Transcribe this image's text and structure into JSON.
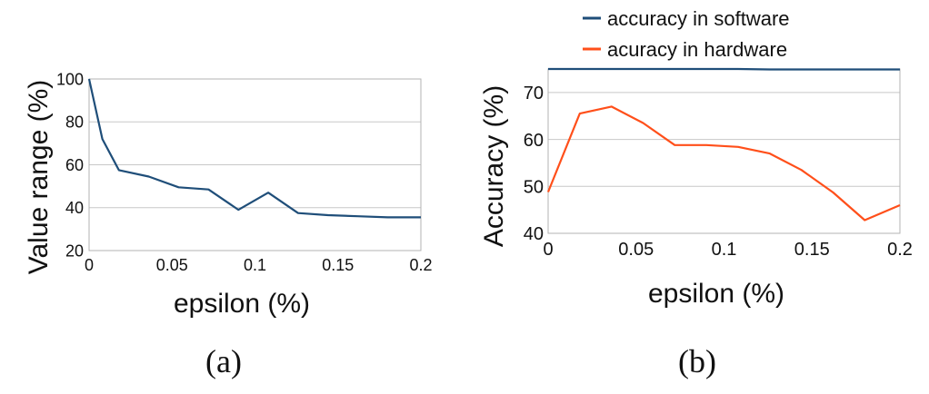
{
  "chart_data": [
    {
      "type": "line",
      "xlabel": "epsilon (%)",
      "ylabel": "Value range (%)",
      "caption": "(a)",
      "xlim": [
        0,
        0.2
      ],
      "ylim": [
        20,
        100
      ],
      "xticks": [
        "0",
        "0.05",
        "0.1",
        "0.15",
        "0.2"
      ],
      "yticks": [
        "20",
        "40",
        "60",
        "80",
        "100"
      ],
      "grid": true,
      "series": [
        {
          "color": "#1f4e79",
          "x": [
            0,
            0.008,
            0.018,
            0.036,
            0.054,
            0.072,
            0.09,
            0.108,
            0.126,
            0.144,
            0.162,
            0.18,
            0.2
          ],
          "y": [
            100,
            72,
            57.5,
            54.5,
            49.5,
            48.5,
            39,
            47,
            37.5,
            36.5,
            36,
            35.5,
            35.5
          ]
        }
      ]
    },
    {
      "type": "line",
      "xlabel": "epsilon (%)",
      "ylabel": "Accuracy (%)",
      "caption": "(b)",
      "xlim": [
        0,
        0.2
      ],
      "ylim": [
        40,
        75
      ],
      "xticks": [
        "0",
        "0.05",
        "0.1",
        "0.15",
        "0.2"
      ],
      "yticks": [
        "40",
        "50",
        "60",
        "70"
      ],
      "grid": true,
      "legend_position": "top",
      "series": [
        {
          "name": "accuracy in software",
          "color": "#1f4e79",
          "x": [
            0,
            0.036,
            0.072,
            0.108,
            0.126,
            0.144,
            0.18,
            0.2
          ],
          "y": [
            75,
            75,
            75,
            75,
            74.9,
            74.9,
            74.9,
            74.9
          ]
        },
        {
          "name": "acuracy in hardware",
          "color": "#ff4f1a",
          "x": [
            0,
            0.018,
            0.036,
            0.054,
            0.072,
            0.09,
            0.108,
            0.126,
            0.144,
            0.162,
            0.18,
            0.2
          ],
          "y": [
            48.8,
            65.5,
            67,
            63.5,
            58.8,
            58.8,
            58.4,
            57,
            53.5,
            48.7,
            42.8,
            46
          ]
        }
      ]
    }
  ]
}
